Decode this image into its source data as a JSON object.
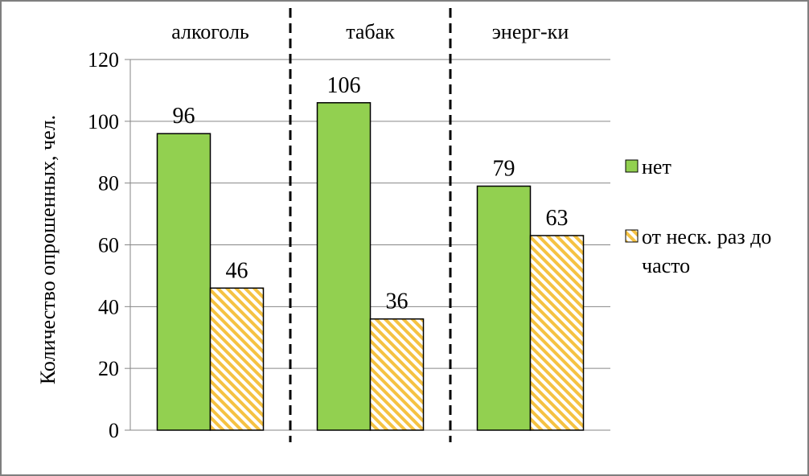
{
  "chart_data": {
    "type": "bar",
    "categories": [
      "алкоголь",
      "табак",
      "энерг-ки"
    ],
    "series": [
      {
        "name": "нет",
        "values": [
          96,
          106,
          79
        ],
        "color": "#92d050",
        "pattern": "solid"
      },
      {
        "name": "от неск. раз до часто",
        "values": [
          46,
          36,
          63
        ],
        "color": "#f5c242",
        "pattern": "diagonal-stripes"
      }
    ],
    "legend_lines": [
      [
        "нет"
      ],
      [
        "от неск. раз до",
        "часто"
      ]
    ],
    "ylabel": "Количество опрошенных,  чел.",
    "ylim": [
      0,
      120
    ],
    "yticks": [
      0,
      20,
      40,
      60,
      80,
      100,
      120
    ],
    "grid": true,
    "category_labels_position": "top",
    "category_separators": "dashed",
    "legend_position": "right"
  }
}
